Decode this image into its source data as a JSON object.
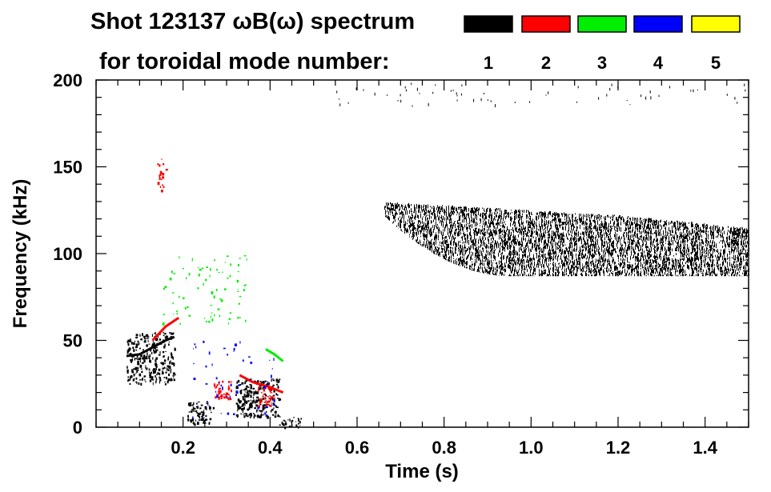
{
  "chart_data": {
    "type": "heatmap",
    "title_line1": "Shot 123137 ωB(ω) spectrum",
    "title_line2": "for toroidal mode number:",
    "xlabel": "Time (s)",
    "ylabel": "Frequency (kHz)",
    "xlim": [
      0.0,
      1.5
    ],
    "ylim": [
      0,
      200
    ],
    "x_ticks": [
      0.2,
      0.4,
      0.6,
      0.8,
      1.0,
      1.2,
      1.4
    ],
    "x_tick_labels": [
      "0.2",
      "0.4",
      "0.6",
      "0.8",
      "1.0",
      "1.2",
      "1.4"
    ],
    "y_ticks": [
      0,
      50,
      100,
      150,
      200
    ],
    "y_tick_labels": [
      "0",
      "50",
      "100",
      "150",
      "200"
    ],
    "legend": [
      {
        "label": "1",
        "color": "#000000"
      },
      {
        "label": "2",
        "color": "#ff0000"
      },
      {
        "label": "3",
        "color": "#00ee00"
      },
      {
        "label": "4",
        "color": "#0000ff"
      },
      {
        "label": "5",
        "color": "#ffff00"
      }
    ],
    "features": [
      {
        "mode": "1",
        "color": "#000000",
        "desc": "broadband n=1 band",
        "t": [
          0.66,
          1.5
        ],
        "f_low_start": 122,
        "f_low_end": 87,
        "f_high": [
          130,
          126,
          122,
          115
        ],
        "density": 0.55
      },
      {
        "mode": "1",
        "color": "#000000",
        "desc": "early burst",
        "t": [
          0.07,
          0.18
        ],
        "f": [
          25,
          55
        ],
        "density": 0.45
      },
      {
        "mode": "1",
        "color": "#000000",
        "desc": "n=1 line",
        "points": [
          [
            0.07,
            41
          ],
          [
            0.1,
            42
          ],
          [
            0.13,
            46
          ],
          [
            0.16,
            50
          ],
          [
            0.18,
            52
          ]
        ]
      },
      {
        "mode": "1",
        "color": "#000000",
        "desc": "low-f cluster",
        "t": [
          0.21,
          0.27
        ],
        "f": [
          2,
          15
        ],
        "density": 0.45
      },
      {
        "mode": "1",
        "color": "#000000",
        "desc": "low-f cluster",
        "t": [
          0.32,
          0.42
        ],
        "f": [
          6,
          28
        ],
        "density": 0.55
      },
      {
        "mode": "1",
        "color": "#000000",
        "desc": "low-f cluster",
        "t": [
          0.42,
          0.47
        ],
        "f": [
          0,
          6
        ],
        "density": 0.45
      },
      {
        "mode": "2",
        "color": "#ff0000",
        "desc": "n=2 chirp",
        "points": [
          [
            0.13,
            50
          ],
          [
            0.16,
            58
          ],
          [
            0.19,
            63
          ]
        ]
      },
      {
        "mode": "2",
        "color": "#ff0000",
        "desc": "n=2 line",
        "points": [
          [
            0.33,
            30
          ],
          [
            0.36,
            26
          ],
          [
            0.4,
            23
          ],
          [
            0.43,
            20
          ]
        ]
      },
      {
        "mode": "2",
        "color": "#ff0000",
        "desc": "n=2 blob",
        "t": [
          0.27,
          0.31
        ],
        "f": [
          16,
          27
        ],
        "density": 0.55
      },
      {
        "mode": "2",
        "color": "#ff0000",
        "desc": "n=2 blob",
        "t": [
          0.37,
          0.41
        ],
        "f": [
          12,
          24
        ],
        "density": 0.45
      },
      {
        "mode": "2",
        "color": "#ff0000",
        "desc": "n=2 high-f",
        "t": [
          0.14,
          0.16
        ],
        "f": [
          136,
          155
        ],
        "density": 0.25
      },
      {
        "mode": "3",
        "color": "#00ee00",
        "desc": "n=3 line",
        "points": [
          [
            0.39,
            45
          ],
          [
            0.41,
            42
          ],
          [
            0.43,
            38
          ]
        ]
      },
      {
        "mode": "3",
        "color": "#00ee00",
        "desc": "n=3 points",
        "t": [
          0.15,
          0.35
        ],
        "f": [
          60,
          100
        ],
        "density": 0.05
      },
      {
        "mode": "4",
        "color": "#0000ff",
        "desc": "n=4 points",
        "t": [
          0.22,
          0.41
        ],
        "f": [
          5,
          50
        ],
        "density": 0.03
      }
    ]
  }
}
